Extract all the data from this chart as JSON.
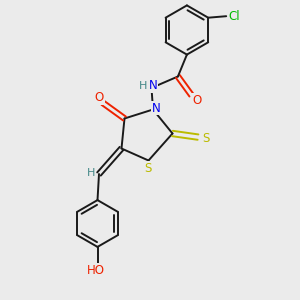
{
  "bg_color": "#ebebeb",
  "bond_color": "#1a1a1a",
  "colors": {
    "N": "#0000ee",
    "O": "#ee2200",
    "S": "#bbbb00",
    "Cl": "#00bb00",
    "H": "#448888",
    "C": "#1a1a1a"
  },
  "figsize": [
    3.0,
    3.0
  ],
  "dpi": 100
}
